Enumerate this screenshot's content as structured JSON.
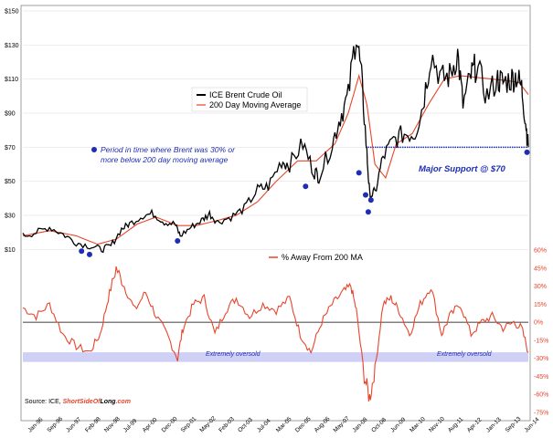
{
  "chart_data": {
    "type": "line",
    "panels": [
      {
        "name": "upper",
        "ylim": [
          0,
          150
        ],
        "yticks": [
          "$10",
          "$30",
          "$50",
          "$70",
          "$90",
          "$110",
          "$130",
          "$150"
        ],
        "ytick_values": [
          10,
          30,
          50,
          70,
          90,
          110,
          130,
          150
        ],
        "series": [
          {
            "name": "ICE Brent Crude Oil",
            "color": "#000000",
            "x": [
              1996.0,
              1996.5,
              1997.0,
              1997.5,
              1998.0,
              1998.5,
              1998.95,
              1999.3,
              1999.7,
              2000.0,
              2000.5,
              2000.9,
              2001.3,
              2001.7,
              2001.9,
              2002.3,
              2002.7,
              2003.0,
              2003.3,
              2003.8,
              2004.3,
              2004.8,
              2005.2,
              2005.7,
              2006.0,
              2006.5,
              2006.9,
              2007.1,
              2007.6,
              2007.9,
              2008.2,
              2008.5,
              2008.7,
              2008.9,
              2009.0,
              2009.2,
              2009.5,
              2009.9,
              2010.3,
              2010.7,
              2011.0,
              2011.3,
              2011.7,
              2012.0,
              2012.3,
              2012.5,
              2012.8,
              2013.0,
              2013.4,
              2013.8,
              2014.0,
              2014.3,
              2014.5,
              2014.7,
              2014.85,
              2014.95
            ],
            "values": [
              18,
              20,
              23,
              19,
              14,
              12,
              10,
              12,
              22,
              25,
              30,
              31,
              26,
              25,
              18,
              23,
              27,
              31,
              26,
              29,
              34,
              45,
              47,
              62,
              60,
              72,
              56,
              53,
              72,
              88,
              100,
              138,
              110,
              66,
              42,
              43,
              64,
              74,
              78,
              78,
              95,
              125,
              110,
              112,
              125,
              95,
              112,
              118,
              100,
              110,
              108,
              110,
              112,
              105,
              85,
              70
            ]
          },
          {
            "name": "200 Day Moving Average",
            "color": "#e8452c",
            "x": [
              1996.0,
              1997.0,
              1998.0,
              1998.8,
              1999.5,
              2000.3,
              2001.0,
              2001.8,
              2002.5,
              2003.3,
              2004.0,
              2004.8,
              2005.5,
              2006.3,
              2007.0,
              2007.7,
              2008.2,
              2008.6,
              2008.9,
              2009.2,
              2009.6,
              2010.0,
              2010.6,
              2011.2,
              2011.8,
              2012.4,
              2013.0,
              2013.6,
              2014.2,
              2014.6,
              2014.95
            ],
            "values": [
              18,
              21,
              18,
              13,
              16,
              25,
              29,
              24,
              24,
              27,
              30,
              38,
              50,
              62,
              62,
              72,
              90,
              112,
              95,
              60,
              52,
              72,
              78,
              95,
              110,
              112,
              111,
              110,
              109,
              108,
              101
            ]
          }
        ],
        "support_level": 70,
        "oversold_points": {
          "x": [
            1998.2,
            1998.5,
            2001.8,
            2006.6,
            2008.6,
            2008.85,
            2008.95,
            2009.05,
            2014.9
          ],
          "values": [
            9,
            7,
            15,
            47,
            55,
            42,
            32,
            39,
            67
          ]
        }
      },
      {
        "name": "lower",
        "ylim": [
          -75,
          60
        ],
        "yticks": [
          "60%",
          "45%",
          "30%",
          "15%",
          "0%",
          "-15%",
          "-30%",
          "-45%",
          "-60%",
          "-75%"
        ],
        "ytick_values": [
          60,
          45,
          30,
          15,
          0,
          -15,
          -30,
          -45,
          -60,
          -75
        ],
        "series": [
          {
            "name": "% Away From 200 MA",
            "color": "#e8452c",
            "x": [
              1996.0,
              1996.5,
              1997.0,
              1997.5,
              1998.0,
              1998.5,
              1998.9,
              1999.2,
              1999.5,
              1999.8,
              2000.2,
              2000.6,
              2001.0,
              2001.4,
              2001.8,
              2002.0,
              2002.4,
              2002.8,
              2003.2,
              2003.6,
              2004.0,
              2004.5,
              2005.0,
              2005.5,
              2006.0,
              2006.4,
              2006.8,
              2007.2,
              2007.6,
              2008.0,
              2008.3,
              2008.5,
              2008.8,
              2009.0,
              2009.2,
              2009.5,
              2009.8,
              2010.1,
              2010.5,
              2010.9,
              2011.3,
              2011.7,
              2012.0,
              2012.4,
              2012.8,
              2013.2,
              2013.6,
              2014.0,
              2014.4,
              2014.7,
              2014.95
            ],
            "values": [
              12,
              5,
              15,
              -10,
              -20,
              -25,
              -10,
              20,
              45,
              30,
              10,
              25,
              5,
              -10,
              -30,
              -5,
              15,
              20,
              -10,
              10,
              20,
              5,
              15,
              10,
              20,
              -10,
              -25,
              0,
              15,
              25,
              30,
              10,
              -45,
              -63,
              -40,
              15,
              20,
              10,
              -10,
              15,
              30,
              -10,
              5,
              15,
              -10,
              0,
              5,
              -5,
              0,
              -5,
              -25
            ]
          }
        ],
        "oversold_band": [
          -25,
          -33
        ]
      }
    ],
    "x_tick_labels": [
      "Jan-96",
      "Sep-96",
      "Jun-97",
      "Feb-98",
      "Nov-98",
      "Jul-99",
      "Apr-00",
      "Dec-00",
      "Sep-01",
      "May-02",
      "Feb-03",
      "Oct-03",
      "Jul-04",
      "Mar-05",
      "Dec-05",
      "Aug-06",
      "May-07",
      "Jan-08",
      "Oct-08",
      "Jun-09",
      "Mar-10",
      "Nov-10",
      "Aug-11",
      "Apr-12",
      "Jan-13",
      "Sep-13",
      "Jun-14"
    ],
    "xlim": [
      1996.0,
      2014.95
    ],
    "annotations": {
      "period_note_line1": "Period in time where Brent was 30% or",
      "period_note_line2": "more below 200 day moving average",
      "support_note": "Major Support @ $70",
      "oversold_left": "Extremely oversold",
      "oversold_right": "Extremely oversold"
    },
    "source": {
      "prefix": "Source: ICE, ",
      "brand_part1": "ShortSideOf",
      "brand_part2": "Long",
      "brand_part3": ".com"
    },
    "colors": {
      "price": "#000000",
      "ma": "#e8452c",
      "points": "#1d2db5",
      "band": "#cfd0f5"
    }
  }
}
